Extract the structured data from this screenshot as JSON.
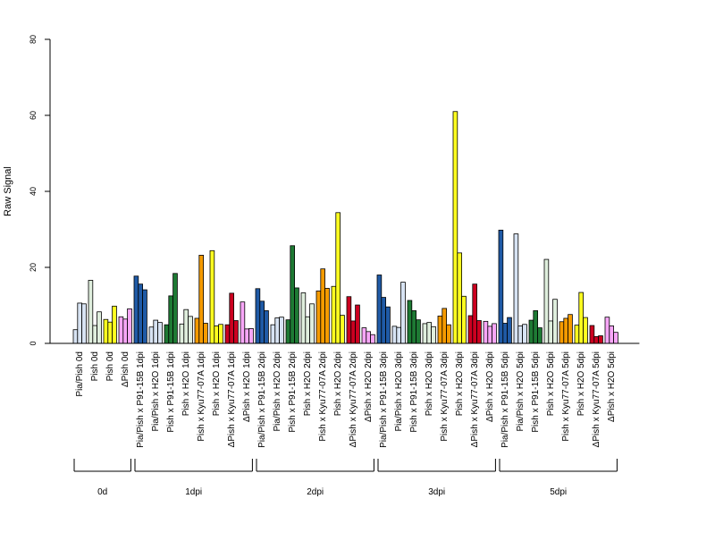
{
  "chart_data": {
    "type": "bar",
    "ylabel": "Raw Signal",
    "ylim": [
      0,
      80
    ],
    "yticks": [
      0,
      20,
      40,
      60,
      80
    ],
    "group_colors": {
      "0": "#ffffff",
      "1": "#1f5aa6",
      "2": "#d7e3f3",
      "3": "#1e7a34",
      "4": "#dfeedd",
      "5": "#f59b00",
      "6": "#ffff20",
      "7": "#cc0020",
      "8": "#f7a6f7"
    },
    "categories": [
      {
        "label": "Pia/Pish 0d",
        "color_group": 2,
        "values": [
          3.6,
          10.6,
          10.4
        ]
      },
      {
        "label": "Pish 0d",
        "color_group": 4,
        "values": [
          16.6,
          4.7,
          8.3
        ]
      },
      {
        "label": "Pish 0d",
        "color_group": 6,
        "values": [
          6.3,
          5.6,
          9.8
        ]
      },
      {
        "label": "ΔPish 0d",
        "color_group": 8,
        "values": [
          7.0,
          6.4,
          9.1
        ]
      },
      {
        "label": "Pia/Pish x P91-15B 1dpi",
        "color_group": 1,
        "values": [
          17.7,
          15.6,
          14.1
        ]
      },
      {
        "label": "Pia/Pish x H2O 1dpi",
        "color_group": 2,
        "values": [
          4.3,
          6.1,
          5.5
        ]
      },
      {
        "label": "Pish x P91-15B 1dpi",
        "color_group": 3,
        "values": [
          4.9,
          12.5,
          18.4
        ]
      },
      {
        "label": "Pish x H2O 1dpi",
        "color_group": 4,
        "values": [
          5.1,
          8.9,
          7.1
        ]
      },
      {
        "label": "Pish x Kyu77-07A 1dpi",
        "color_group": 5,
        "values": [
          6.6,
          23.2,
          5.3
        ]
      },
      {
        "label": "Pish x H2O 1dpi",
        "color_group": 6,
        "values": [
          24.4,
          4.6,
          5.0
        ]
      },
      {
        "label": "ΔPish x Kyu77-07A 1dpi",
        "color_group": 7,
        "values": [
          4.9,
          13.2,
          6.0
        ]
      },
      {
        "label": "ΔPish x H2O 1dpi",
        "color_group": 8,
        "values": [
          10.9,
          3.8,
          3.9
        ]
      },
      {
        "label": "Pia/Pish x P91-15B 2dpi",
        "color_group": 1,
        "values": [
          14.4,
          11.1,
          8.6
        ]
      },
      {
        "label": "Pia/Pish x H2O 2dpi",
        "color_group": 2,
        "values": [
          4.9,
          6.7,
          6.9
        ]
      },
      {
        "label": "Pish x P91-15B 2dpi",
        "color_group": 3,
        "values": [
          6.2,
          25.7,
          14.6
        ]
      },
      {
        "label": "Pish x H2O 2dpi",
        "color_group": 4,
        "values": [
          13.3,
          7.0,
          10.4
        ]
      },
      {
        "label": "Pish x Kyu77-07A 2dpi",
        "color_group": 5,
        "values": [
          13.8,
          19.6,
          14.5
        ]
      },
      {
        "label": "Pish x H2O 2dpi",
        "color_group": 6,
        "values": [
          15.0,
          34.4,
          7.4
        ]
      },
      {
        "label": "ΔPish x Kyu77-07A 2dpi",
        "color_group": 7,
        "values": [
          12.3,
          5.9,
          10.1
        ]
      },
      {
        "label": "ΔPish x H2O 2dpi",
        "color_group": 8,
        "values": [
          4.1,
          3.1,
          2.3
        ]
      },
      {
        "label": "Pia/Pish x P91-15B 3dpi",
        "color_group": 1,
        "values": [
          18.0,
          12.1,
          9.6
        ]
      },
      {
        "label": "Pia/Pish x H2O 3dpi",
        "color_group": 2,
        "values": [
          4.5,
          4.2,
          16.1
        ]
      },
      {
        "label": "Pish x P91-15B 3dpi",
        "color_group": 3,
        "values": [
          11.3,
          8.6,
          6.2
        ]
      },
      {
        "label": "Pish x H2O 3dpi",
        "color_group": 4,
        "values": [
          5.2,
          5.5,
          4.4
        ]
      },
      {
        "label": "Pish x Kyu77-07A 3dpi",
        "color_group": 5,
        "values": [
          7.2,
          9.2,
          4.9
        ]
      },
      {
        "label": "Pish x H2O 3dpi",
        "color_group": 6,
        "values": [
          61.0,
          23.8,
          12.4
        ]
      },
      {
        "label": "ΔPish x Kyu77-07A 3dpi",
        "color_group": 7,
        "values": [
          7.3,
          15.6,
          6.0
        ]
      },
      {
        "label": "ΔPish x H2O 3dpi",
        "color_group": 8,
        "values": [
          5.8,
          4.5,
          5.2
        ]
      },
      {
        "label": "Pia/Pish x P91-15B 5dpi",
        "color_group": 1,
        "values": [
          29.8,
          5.3,
          6.8
        ]
      },
      {
        "label": "Pia/Pish x H2O 5dpi",
        "color_group": 2,
        "values": [
          28.8,
          4.6,
          5.0
        ]
      },
      {
        "label": "Pish x P91-15B 5dpi",
        "color_group": 3,
        "values": [
          6.1,
          8.6,
          4.1
        ]
      },
      {
        "label": "Pish x H2O 5dpi",
        "color_group": 4,
        "values": [
          22.1,
          5.9,
          11.6
        ]
      },
      {
        "label": "Pish x Kyu77-07A 5dpi",
        "color_group": 5,
        "values": [
          5.7,
          6.6,
          7.6
        ]
      },
      {
        "label": "Pish x H2O 5dpi",
        "color_group": 6,
        "values": [
          4.8,
          13.4,
          6.8
        ]
      },
      {
        "label": "ΔPish x Kyu77-07A 5dpi",
        "color_group": 7,
        "values": [
          4.7,
          1.8,
          2.0
        ]
      },
      {
        "label": "ΔPish x H2O 5dpi",
        "color_group": 8,
        "values": [
          6.9,
          4.6,
          2.9
        ]
      }
    ],
    "groups": [
      {
        "label": "0d",
        "first": 0,
        "last": 3
      },
      {
        "label": "1dpi",
        "first": 4,
        "last": 11
      },
      {
        "label": "2dpi",
        "first": 12,
        "last": 19
      },
      {
        "label": "3dpi",
        "first": 20,
        "last": 27
      },
      {
        "label": "5dpi",
        "first": 28,
        "last": 35
      }
    ]
  }
}
